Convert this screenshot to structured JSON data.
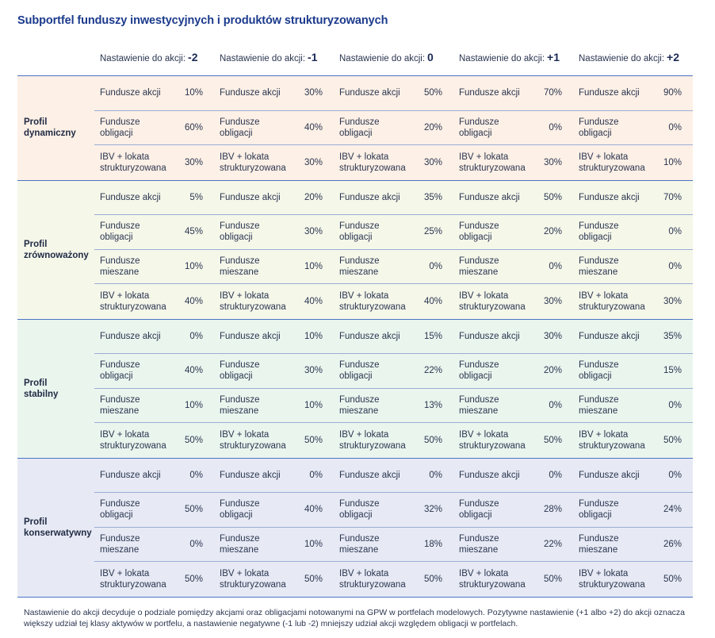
{
  "title": "Subportfel funduszy inwestycyjnych i produktów strukturyzowanych",
  "header_label": "Nastawienie do akcji:",
  "levels": [
    "-2",
    "-1",
    "0",
    "+1",
    "+2"
  ],
  "profiles": [
    {
      "name": "Profil dynamiczny",
      "rows": [
        {
          "label": "Fundusze akcji",
          "values": [
            "10%",
            "30%",
            "50%",
            "70%",
            "90%"
          ]
        },
        {
          "label": "Fundusze\nobligacji",
          "values": [
            "60%",
            "40%",
            "20%",
            "0%",
            "0%"
          ]
        },
        {
          "label": "IBV + lokata\nstrukturyzowana",
          "values": [
            "30%",
            "30%",
            "30%",
            "30%",
            "10%"
          ]
        }
      ]
    },
    {
      "name": "Profil zrównoważony",
      "rows": [
        {
          "label": "Fundusze akcji",
          "values": [
            "5%",
            "20%",
            "35%",
            "50%",
            "70%"
          ]
        },
        {
          "label": "Fundusze\nobligacji",
          "values": [
            "45%",
            "30%",
            "25%",
            "20%",
            "0%"
          ]
        },
        {
          "label": "Fundusze\nmieszane",
          "values": [
            "10%",
            "10%",
            "0%",
            "0%",
            "0%"
          ]
        },
        {
          "label": "IBV + lokata\nstrukturyzowana",
          "values": [
            "40%",
            "40%",
            "40%",
            "30%",
            "30%"
          ]
        }
      ]
    },
    {
      "name": "Profil stabilny",
      "rows": [
        {
          "label": "Fundusze akcji",
          "values": [
            "0%",
            "10%",
            "15%",
            "30%",
            "35%"
          ]
        },
        {
          "label": "Fundusze\nobligacji",
          "values": [
            "40%",
            "30%",
            "22%",
            "20%",
            "15%"
          ]
        },
        {
          "label": "Fundusze\nmieszane",
          "values": [
            "10%",
            "10%",
            "13%",
            "0%",
            "0%"
          ]
        },
        {
          "label": "IBV + lokata\nstrukturyzowana",
          "values": [
            "50%",
            "50%",
            "50%",
            "50%",
            "50%"
          ]
        }
      ]
    },
    {
      "name": "Profil konserwatywny",
      "rows": [
        {
          "label": "Fundusze akcji",
          "values": [
            "0%",
            "0%",
            "0%",
            "0%",
            "0%"
          ]
        },
        {
          "label": "Fundusze\nobligacji",
          "values": [
            "50%",
            "40%",
            "32%",
            "28%",
            "24%"
          ]
        },
        {
          "label": "Fundusze\nmieszane",
          "values": [
            "0%",
            "10%",
            "18%",
            "22%",
            "26%"
          ]
        },
        {
          "label": "IBV + lokata\nstrukturyzowana",
          "values": [
            "50%",
            "50%",
            "50%",
            "50%",
            "50%"
          ]
        }
      ]
    }
  ],
  "footnote": "Nastawienie do akcji decyduje o podziale pomiędzy akcjami oraz obligacjami notowanymi na GPW w portfelach modelowych. Pozytywne nastawienie (+1 albo +2) do akcji oznacza większy udział tej klasy aktywów w portfelu, a nastawienie negatywne (-1 lub -2) mniejszy udział akcji względem obligacji w portfelach.",
  "colors": {
    "title": "#1b3a8c",
    "rule": "#4a73c4",
    "dynamiczny_bg": "#fdf0e6",
    "zrownowazony_bg": "#f5f7e9",
    "stabilny_bg": "#eaf5ee",
    "konserwatywny_bg": "#e7eaf4"
  }
}
